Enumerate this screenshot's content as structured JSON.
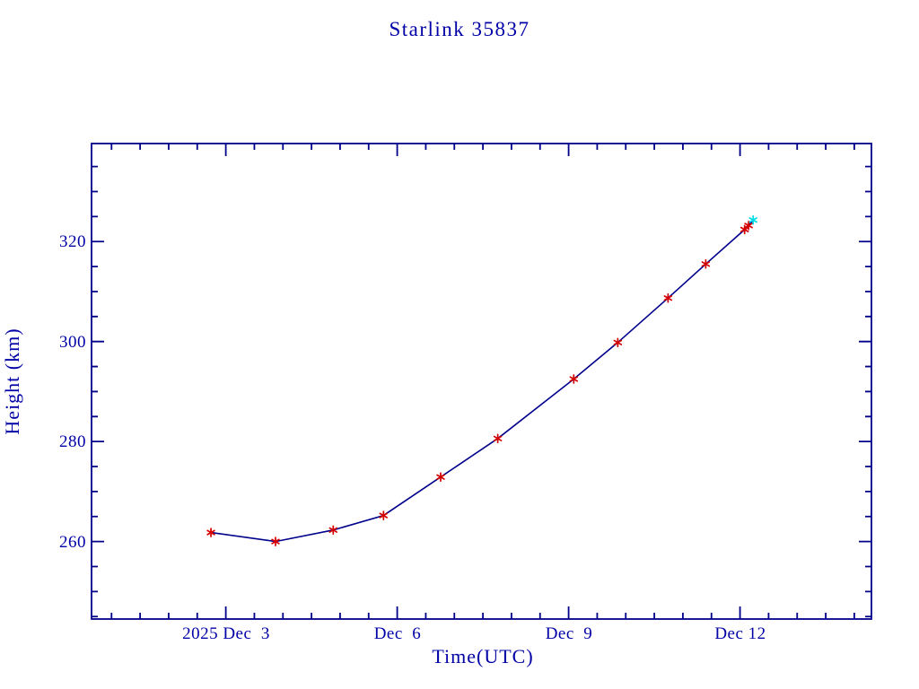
{
  "title": "Starlink 35837",
  "colors": {
    "text": "#0000A6",
    "axis": "#00008B",
    "line": "#00008B",
    "marker_red": "#D40000",
    "marker_cyan": "#00DDE6",
    "background": "#FFFFFF"
  },
  "chart_data": {
    "type": "line",
    "title": "Starlink 35837",
    "xlabel": "Time(UTC)",
    "ylabel": "Height (km)",
    "x_unit_note": "x values are day of month, December 2025 UTC",
    "xlim": [
      0.65,
      14.3
    ],
    "ylim": [
      244.5,
      339.6
    ],
    "grid": false,
    "legend": null,
    "x_major_ticks": [
      {
        "value": 3,
        "label": "2025 Dec  3"
      },
      {
        "value": 6,
        "label": "Dec  6"
      },
      {
        "value": 9,
        "label": "Dec  9"
      },
      {
        "value": 12,
        "label": "Dec 12"
      }
    ],
    "x_minor_interval": 0.5,
    "y_major_ticks": [
      {
        "value": 260,
        "label": "260"
      },
      {
        "value": 280,
        "label": "280"
      },
      {
        "value": 300,
        "label": "300"
      },
      {
        "value": 320,
        "label": "320"
      }
    ],
    "y_minor_interval": 5,
    "series": [
      {
        "name": "observed-height",
        "style": "line-with-markers",
        "marker": "asterisk",
        "marker_color": "#D40000",
        "line_color": "#00008B",
        "points": [
          [
            2.74,
            261.8
          ],
          [
            3.87,
            260.0
          ],
          [
            4.88,
            262.3
          ],
          [
            5.76,
            265.2
          ],
          [
            6.76,
            272.9
          ],
          [
            7.76,
            280.6
          ],
          [
            9.09,
            292.5
          ],
          [
            9.86,
            299.8
          ],
          [
            10.74,
            308.7
          ],
          [
            11.4,
            315.5
          ],
          [
            12.08,
            322.4
          ],
          [
            12.15,
            323.2
          ]
        ]
      },
      {
        "name": "latest-point",
        "style": "marker-only",
        "marker": "asterisk",
        "marker_color": "#00DDE6",
        "points": [
          [
            12.23,
            324.3
          ]
        ]
      }
    ]
  }
}
